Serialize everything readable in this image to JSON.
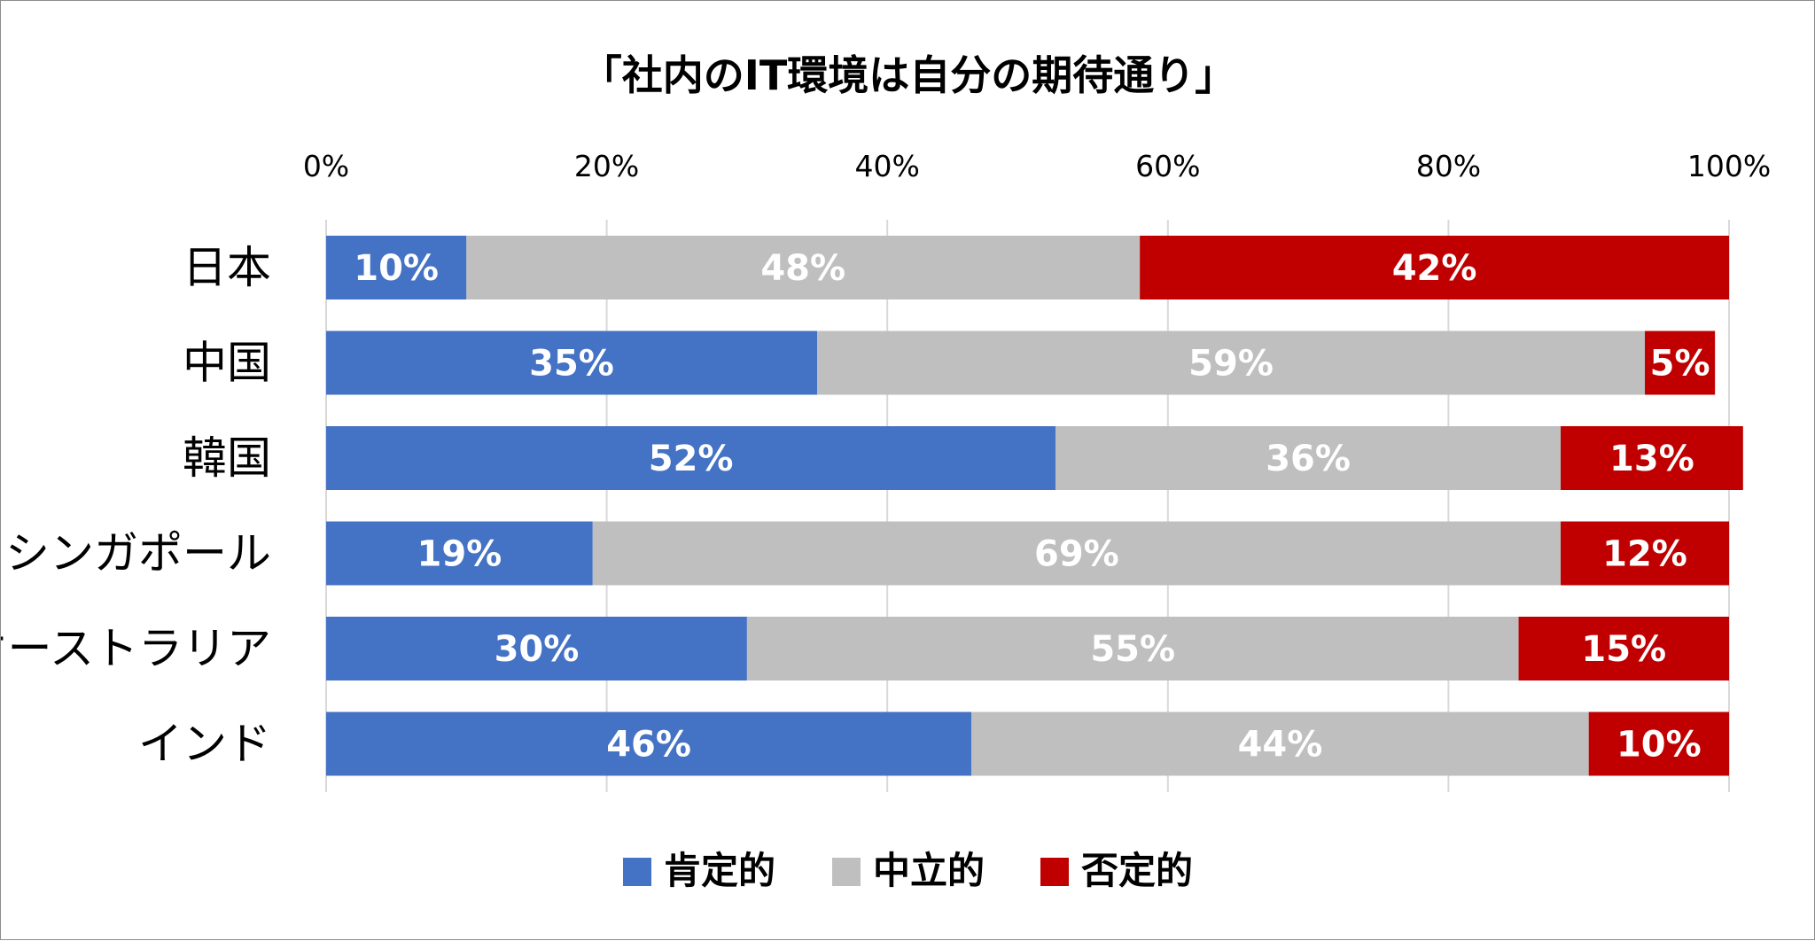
{
  "chart_data": {
    "type": "bar",
    "orientation": "horizontal",
    "stacked": true,
    "title": "「社内のIT環境は自分の期待通り」",
    "xlim": [
      0,
      100
    ],
    "x_ticks": [
      "0%",
      "20%",
      "40%",
      "60%",
      "80%",
      "100%"
    ],
    "grid": true,
    "legend_position": "bottom",
    "categories": [
      "日本",
      "中国",
      "韓国",
      "シンガポール",
      "オーストラリア",
      "インド"
    ],
    "series": [
      {
        "name": "肯定的",
        "color": "#4472c4",
        "values": [
          10,
          35,
          52,
          19,
          30,
          46
        ],
        "labels": [
          "10%",
          "35%",
          "52%",
          "19%",
          "30%",
          "46%"
        ]
      },
      {
        "name": "中立的",
        "color": "#bfbfbf",
        "values": [
          48,
          59,
          36,
          69,
          55,
          44
        ],
        "labels": [
          "48%",
          "59%",
          "36%",
          "69%",
          "55%",
          "44%"
        ]
      },
      {
        "name": "否定的",
        "color": "#c00000",
        "values": [
          42,
          5,
          13,
          12,
          15,
          10
        ],
        "labels": [
          "42%",
          "5%",
          "13%",
          "12%",
          "15%",
          "10%"
        ]
      }
    ]
  }
}
